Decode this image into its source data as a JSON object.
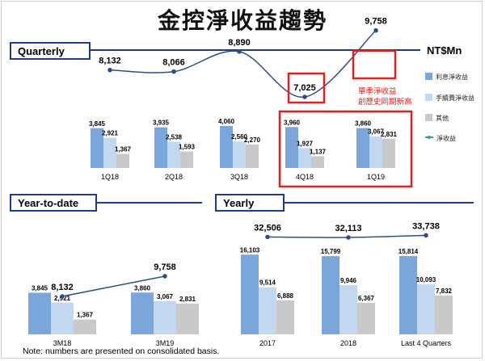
{
  "title": "金控淨收益趨勢",
  "unit": "NT$Mn",
  "sections": {
    "quarterly": "Quarterly",
    "ytd": "Year-to-date",
    "yearly": "Yearly"
  },
  "legend": [
    {
      "label": "利息淨收益",
      "color": "#7aa6db"
    },
    {
      "label": "手續費淨收益",
      "color": "#c2d7f0"
    },
    {
      "label": "其他",
      "color": "#c9c9c9"
    },
    {
      "label": "淨收益",
      "color": "#2ea0a0"
    }
  ],
  "callout": {
    "line1": "單季淨收益",
    "line2": "創歷史同期新高"
  },
  "footnote": "Note: numbers are presented on consolidated basis.",
  "colors": {
    "interest": "#7aa6db",
    "fee": "#c2d7f0",
    "other": "#c9c9c9",
    "line": "#2a4f8a",
    "highlight": "#e0201a",
    "section": "#1f3a8f"
  },
  "chart_data": [
    {
      "type": "bar",
      "title": "Quarterly",
      "categories": [
        "1Q18",
        "2Q18",
        "3Q18",
        "4Q18",
        "1Q19"
      ],
      "series": [
        {
          "name": "利息淨收益",
          "values": [
            3845,
            3935,
            4060,
            3960,
            3860
          ]
        },
        {
          "name": "手續費淨收益",
          "values": [
            2921,
            2538,
            2560,
            1927,
            3067
          ]
        },
        {
          "name": "其他",
          "values": [
            1367,
            1593,
            2270,
            1137,
            2831
          ]
        }
      ],
      "line": {
        "name": "淨收益",
        "values": [
          8132,
          8066,
          8890,
          7025,
          9758
        ]
      },
      "highlighted": [
        "4Q18",
        "1Q19"
      ]
    },
    {
      "type": "bar",
      "title": "Year-to-date",
      "categories": [
        "3M18",
        "3M19"
      ],
      "series": [
        {
          "name": "利息淨收益",
          "values": [
            3845,
            3860
          ]
        },
        {
          "name": "手續費淨收益",
          "values": [
            2921,
            3067
          ]
        },
        {
          "name": "其他",
          "values": [
            1367,
            2831
          ]
        }
      ],
      "line": {
        "name": "淨收益",
        "values": [
          8132,
          9758
        ]
      }
    },
    {
      "type": "bar",
      "title": "Yearly",
      "categories": [
        "2017",
        "2018",
        "Last 4 Quarters"
      ],
      "series": [
        {
          "name": "利息淨收益",
          "values": [
            16103,
            15799,
            15814
          ]
        },
        {
          "name": "手續費淨收益",
          "values": [
            9514,
            9946,
            10093
          ]
        },
        {
          "name": "其他",
          "values": [
            6888,
            6367,
            7832
          ]
        }
      ],
      "line": {
        "name": "淨收益",
        "values": [
          32506,
          32113,
          33738
        ]
      }
    }
  ]
}
